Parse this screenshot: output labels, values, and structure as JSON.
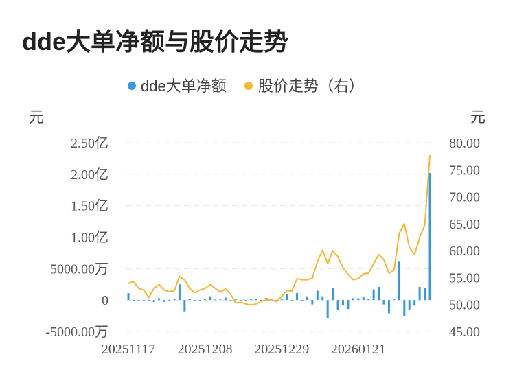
{
  "title": "dde大单净额与股价走势",
  "chart_data": {
    "type": "bar+line",
    "legend": [
      {
        "name": "dde大单净额",
        "color": "#3399e6"
      },
      {
        "name": "股价走势（右）",
        "color": "#f5b82e"
      }
    ],
    "left_unit": "元",
    "right_unit": "元",
    "left_ticks": [
      "2.50亿",
      "2.00亿",
      "1.50亿",
      "1.00亿",
      "5000.00万",
      "0",
      "-5000.00万"
    ],
    "left_tick_values": [
      25000,
      20000,
      15000,
      10000,
      5000,
      0,
      -5000
    ],
    "ylim_left": [
      -5000,
      25000
    ],
    "right_ticks": [
      "80.00",
      "75.00",
      "70.00",
      "65.00",
      "60.00",
      "55.00",
      "50.00",
      "45.00"
    ],
    "right_tick_values": [
      80,
      75,
      70,
      65,
      60,
      55,
      50,
      45
    ],
    "ylim_right": [
      45,
      80
    ],
    "x_ticks": [
      "20251117",
      "20251208",
      "20251229",
      "20260121"
    ],
    "x_tick_index": [
      0,
      15,
      30,
      45
    ],
    "grid": true,
    "legend_position": "top-center",
    "series": [
      {
        "name": "dde大单净额",
        "kind": "bar",
        "unit": "万元",
        "color": "#3399e6",
        "values": [
          1100,
          -200,
          -150,
          -150,
          -100,
          -300,
          300,
          -300,
          -150,
          200,
          2500,
          -1800,
          200,
          -200,
          -100,
          200,
          600,
          100,
          100,
          400,
          -200,
          100,
          -200,
          -150,
          100,
          250,
          -100,
          350,
          100,
          -150,
          150,
          900,
          -200,
          1100,
          -200,
          600,
          -700,
          1500,
          600,
          -2900,
          1900,
          -1600,
          -800,
          -1400,
          300,
          300,
          500,
          200,
          1700,
          2100,
          -700,
          -2100,
          100,
          6200,
          -2600,
          -1500,
          -900,
          2100,
          1900,
          20200
        ]
      },
      {
        "name": "股价走势（右）",
        "kind": "line",
        "unit": "元",
        "color": "#f5b82e",
        "values": [
          53.9,
          54.3,
          53.0,
          52.7,
          51.3,
          53.0,
          53.7,
          52.7,
          52.4,
          52.6,
          55.2,
          54.6,
          53.0,
          52.2,
          52.7,
          53.0,
          53.7,
          53.0,
          52.3,
          52.9,
          51.9,
          50.3,
          50.4,
          50.1,
          49.9,
          50.1,
          50.6,
          50.9,
          50.8,
          50.6,
          51.5,
          52.6,
          52.5,
          54.8,
          54.6,
          54.6,
          54.9,
          58.0,
          60.1,
          57.6,
          60.0,
          58.9,
          56.8,
          55.6,
          54.6,
          54.8,
          55.7,
          55.8,
          57.6,
          59.3,
          58.3,
          55.8,
          56.4,
          63.2,
          65.0,
          60.6,
          59.3,
          62.4,
          64.8,
          77.7
        ]
      }
    ]
  }
}
